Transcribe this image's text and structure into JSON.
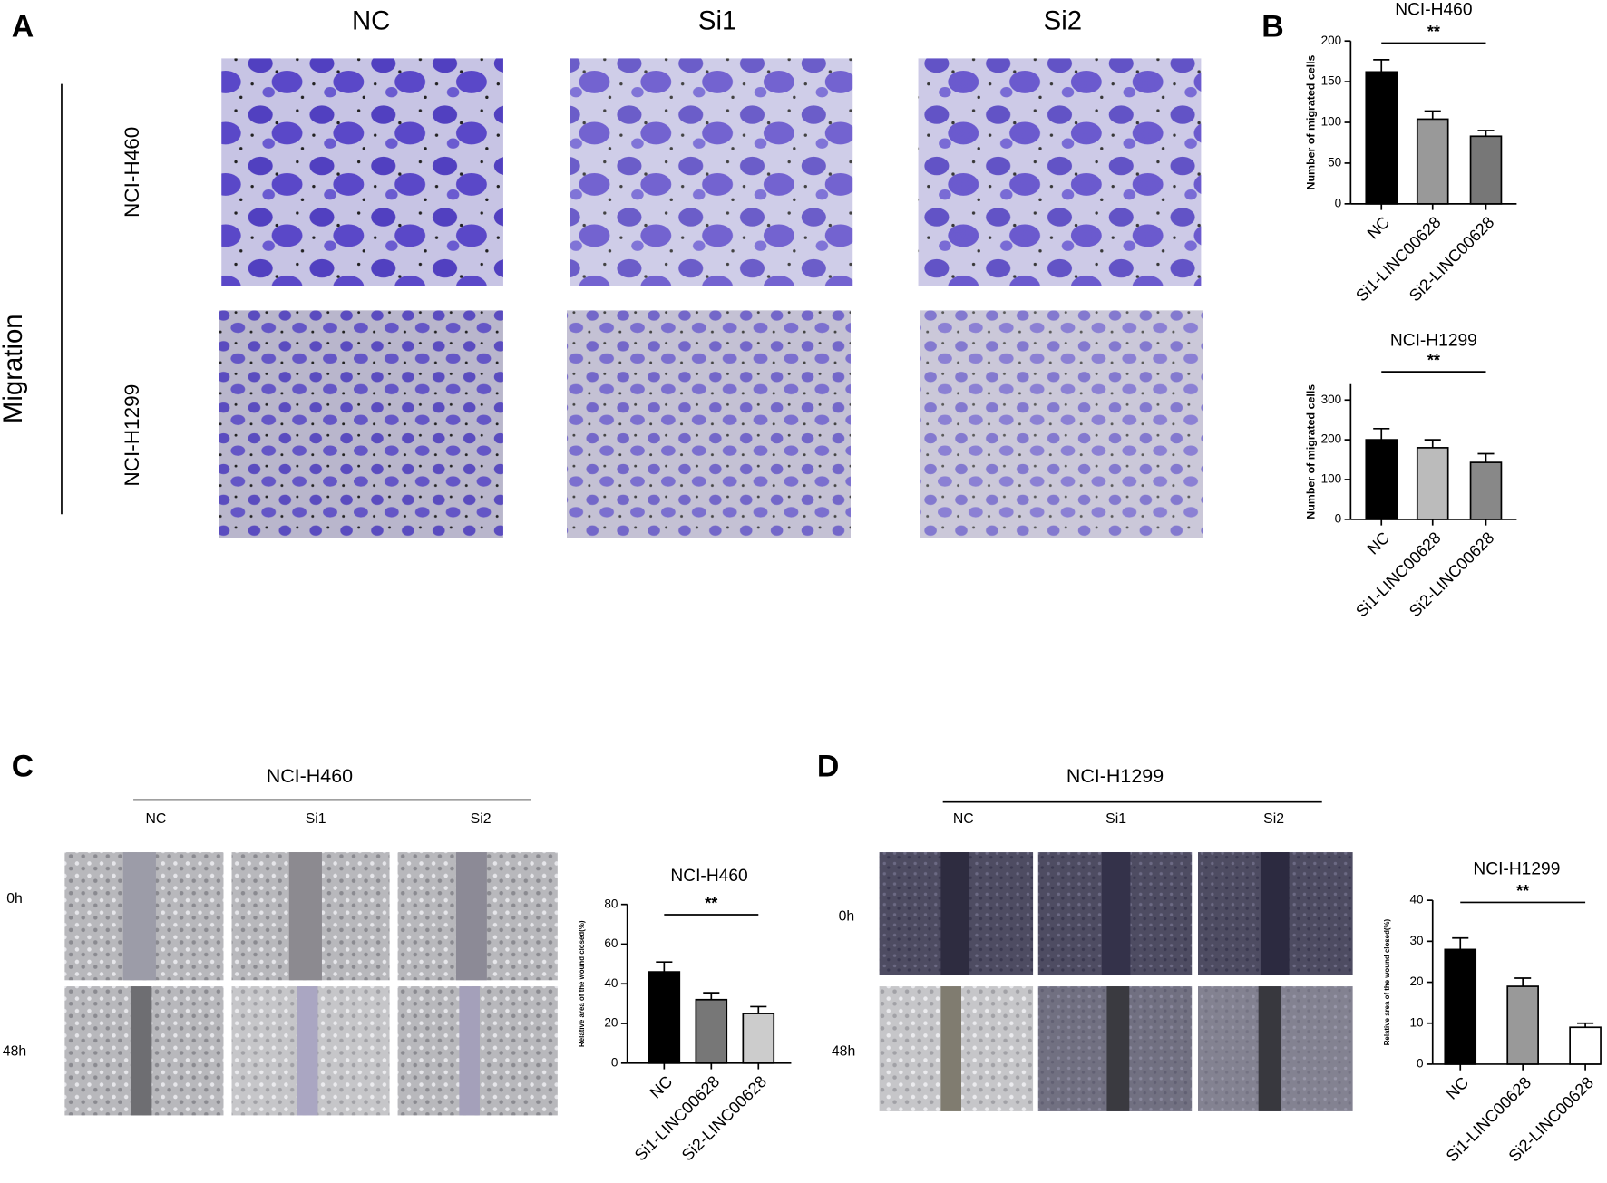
{
  "panel_labels": [
    "A",
    "B",
    "C",
    "D"
  ],
  "panel_a": {
    "columns": [
      "NC",
      "Si1",
      "Si2"
    ],
    "rows": [
      "NCI-H460",
      "NCI-H1299"
    ],
    "side_label": "Migration"
  },
  "panel_c": {
    "title": "NCI-H460",
    "columns": [
      "NC",
      "Si1",
      "Si2"
    ],
    "rows": [
      "0h",
      "48h"
    ]
  },
  "panel_d": {
    "title": "NCI-H1299",
    "columns": [
      "NC",
      "Si1",
      "Si2"
    ],
    "rows": [
      "0h",
      "48h"
    ]
  },
  "chart_data": [
    {
      "type": "bar",
      "title": "NCI-H460",
      "ylabel": "Number of migrated cells",
      "annotation": "**",
      "categories": [
        "NC",
        "Si1-LINC00628",
        "Si2-LINC00628"
      ],
      "values": [
        162,
        104,
        83
      ],
      "errors": [
        15,
        10,
        7
      ],
      "colors": [
        "#000000",
        "#999999",
        "#777777"
      ],
      "ylim": [
        0,
        200
      ],
      "yticks": [
        0,
        50,
        100,
        150,
        200
      ]
    },
    {
      "type": "bar",
      "title": "NCI-H1299",
      "ylabel": "Number of migrated cells",
      "annotation": "**",
      "categories": [
        "NC",
        "Si1-LINC00628",
        "Si2-LINC00628"
      ],
      "values": [
        200,
        180,
        143
      ],
      "errors": [
        28,
        20,
        22
      ],
      "colors": [
        "#000000",
        "#bbbbbb",
        "#888888"
      ],
      "ylim": [
        0,
        340
      ],
      "yticks": [
        0,
        100,
        200,
        300
      ]
    },
    {
      "type": "bar",
      "title": "NCI-H460",
      "ylabel": "Relative area of the wound closed(%)",
      "annotation": "**",
      "categories": [
        "NC",
        "Si1-LINC00628",
        "Si2-LINC00628"
      ],
      "values": [
        46,
        32,
        25
      ],
      "errors": [
        5,
        3.5,
        3.5
      ],
      "colors": [
        "#000000",
        "#777777",
        "#cccccc"
      ],
      "ylim": [
        0,
        80
      ],
      "yticks": [
        0,
        20,
        40,
        60,
        80
      ]
    },
    {
      "type": "bar",
      "title": "NCI-H1299",
      "ylabel": "Relative area of the wound closed(%)",
      "annotation": "**",
      "categories": [
        "NC",
        "Si1-LINC00628",
        "Si2-LINC00628"
      ],
      "values": [
        28,
        19,
        9
      ],
      "errors": [
        2.8,
        2,
        1
      ],
      "colors": [
        "#000000",
        "#999999",
        "#ffffff"
      ],
      "ylim": [
        0,
        40
      ],
      "yticks": [
        0,
        10,
        20,
        30,
        40
      ]
    }
  ]
}
